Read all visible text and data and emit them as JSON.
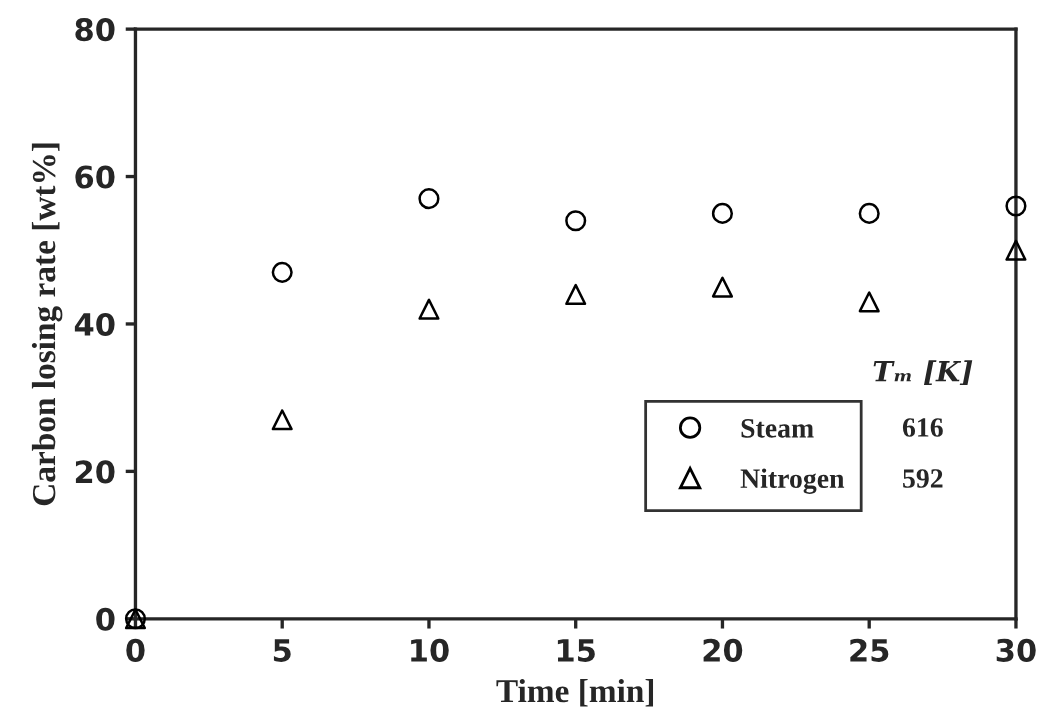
{
  "chart_data": {
    "type": "scatter",
    "xlabel": "Time [min]",
    "ylabel": "Carbon losing rate [wt%]",
    "x": [
      0,
      5,
      10,
      15,
      20,
      25,
      30
    ],
    "series": [
      {
        "name": "Steam",
        "color": "#000000",
        "marker": "circle",
        "values": [
          0,
          47,
          57,
          54,
          55,
          55,
          56
        ]
      },
      {
        "name": "Nitrogen",
        "color": "#000000",
        "marker": "triangle",
        "values": [
          0,
          27,
          42,
          44,
          45,
          43,
          50
        ]
      }
    ],
    "legend": "bottom right",
    "legend_title": "Tₘ [K]",
    "annotations": [
      "616",
      "592"
    ],
    "xlim": [
      0,
      30
    ],
    "xticks": [
      0,
      5,
      10,
      15,
      20,
      25,
      30
    ],
    "ylim": [
      0,
      80
    ],
    "yticks": [
      0,
      20,
      40,
      60,
      80
    ],
    "grid": false
  }
}
